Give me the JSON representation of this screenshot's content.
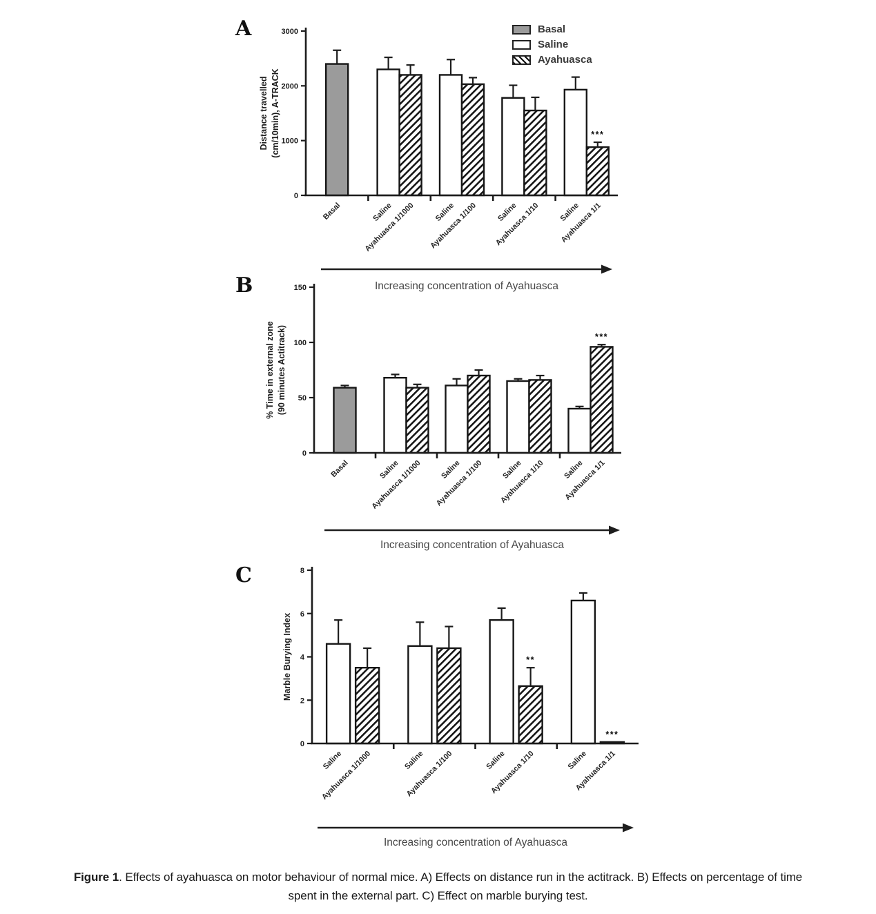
{
  "caption": {
    "prefix_bold": "Figure 1",
    "line1_rest": ". Effects of ayahuasca on motor behaviour of normal mice. A) Effects on distance run in the actitrack. B) Effects on percentage of time",
    "line2": "spent in the external part. C) Effect on marble burying test."
  },
  "legend": {
    "items": [
      {
        "label": "Basal",
        "style": "gray"
      },
      {
        "label": "Saline",
        "style": "white"
      },
      {
        "label": "Ayahuasca",
        "style": "hatch"
      }
    ]
  },
  "colors": {
    "basal_fill": "#9b9b9b",
    "bar_outline": "#161616",
    "axis": "#1c1c1c",
    "arrow": "#1d1d1d"
  },
  "chart_data": [
    {
      "id": "A",
      "panel_label": "A",
      "type": "bar",
      "ylabel_lines": [
        "Distance travelled",
        "(cm/10min), A-TRACK"
      ],
      "ylim": [
        0,
        3000
      ],
      "yticks": [
        0,
        1000,
        2000,
        3000
      ],
      "grid": false,
      "legend_position": "top-right",
      "arrow_label": "Increasing concentration of Ayahuasca",
      "groups": [
        [
          0
        ],
        [
          1,
          2
        ],
        [
          3,
          4
        ],
        [
          5,
          6
        ],
        [
          7,
          8
        ]
      ],
      "bars": [
        {
          "label": "Basal",
          "value": 2400,
          "err": 250,
          "style": "gray"
        },
        {
          "label": "Saline",
          "value": 2300,
          "err": 220,
          "style": "white"
        },
        {
          "label": "Ayahuasca 1/1000",
          "value": 2200,
          "err": 180,
          "style": "hatch"
        },
        {
          "label": "Saline",
          "value": 2200,
          "err": 280,
          "style": "white"
        },
        {
          "label": "Ayahuasca 1/100",
          "value": 2030,
          "err": 120,
          "style": "hatch"
        },
        {
          "label": "Saline",
          "value": 1780,
          "err": 230,
          "style": "white"
        },
        {
          "label": "Ayahuasca 1/10",
          "value": 1550,
          "err": 240,
          "style": "hatch"
        },
        {
          "label": "Saline",
          "value": 1930,
          "err": 230,
          "style": "white"
        },
        {
          "label": "Ayahuasca 1/1",
          "value": 880,
          "err": 90,
          "style": "hatch",
          "sig": "***"
        }
      ]
    },
    {
      "id": "B",
      "panel_label": "B",
      "type": "bar",
      "ylabel_lines": [
        "% Time in external zone",
        "(90 minutes Actitrack)"
      ],
      "ylim": [
        0,
        150
      ],
      "yticks": [
        0,
        50,
        100,
        150
      ],
      "grid": false,
      "arrow_label": "Increasing concentration of Ayahuasca",
      "groups": [
        [
          0
        ],
        [
          1,
          2
        ],
        [
          3,
          4
        ],
        [
          5,
          6
        ],
        [
          7,
          8
        ]
      ],
      "bars": [
        {
          "label": "Basal",
          "value": 59,
          "err": 2,
          "style": "gray"
        },
        {
          "label": "Saline",
          "value": 68,
          "err": 3,
          "style": "white"
        },
        {
          "label": "Ayahuasca 1/1000",
          "value": 59,
          "err": 3,
          "style": "hatch"
        },
        {
          "label": "Saline",
          "value": 61,
          "err": 6,
          "style": "white"
        },
        {
          "label": "Ayahuasca 1/100",
          "value": 70,
          "err": 5,
          "style": "hatch"
        },
        {
          "label": "Saline",
          "value": 65,
          "err": 2,
          "style": "white"
        },
        {
          "label": "Ayahuasca 1/10",
          "value": 66,
          "err": 4,
          "style": "hatch"
        },
        {
          "label": "Saline",
          "value": 40,
          "err": 2,
          "style": "white"
        },
        {
          "label": "Ayahuasca 1/1",
          "value": 96,
          "err": 2,
          "style": "hatch",
          "sig": "***"
        }
      ]
    },
    {
      "id": "C",
      "panel_label": "C",
      "type": "bar",
      "ylabel_lines": [
        "Marble Burying Index"
      ],
      "ylim": [
        0,
        8
      ],
      "yticks": [
        0,
        2,
        4,
        6,
        8
      ],
      "grid": false,
      "arrow_label": "Increasing concentration of Ayahuasca",
      "groups": [
        [
          0,
          1
        ],
        [
          2,
          3
        ],
        [
          4,
          5
        ],
        [
          6,
          7
        ]
      ],
      "bars": [
        {
          "label": "Saline",
          "value": 4.6,
          "err": 1.1,
          "style": "white"
        },
        {
          "label": "Ayahuasca 1/1000",
          "value": 3.5,
          "err": 0.9,
          "style": "hatch"
        },
        {
          "label": "Saline",
          "value": 4.5,
          "err": 1.1,
          "style": "white"
        },
        {
          "label": "Ayahuasca 1/100",
          "value": 4.4,
          "err": 1.0,
          "style": "hatch"
        },
        {
          "label": "Saline",
          "value": 5.7,
          "err": 0.55,
          "style": "white"
        },
        {
          "label": "Ayahuasca 1/10",
          "value": 2.65,
          "err": 0.85,
          "style": "hatch",
          "sig": "**"
        },
        {
          "label": "Saline",
          "value": 6.6,
          "err": 0.35,
          "style": "white"
        },
        {
          "label": "Ayahuasca 1/1",
          "value": 0.07,
          "err": 0,
          "style": "hatch",
          "sig": "***"
        }
      ]
    }
  ]
}
